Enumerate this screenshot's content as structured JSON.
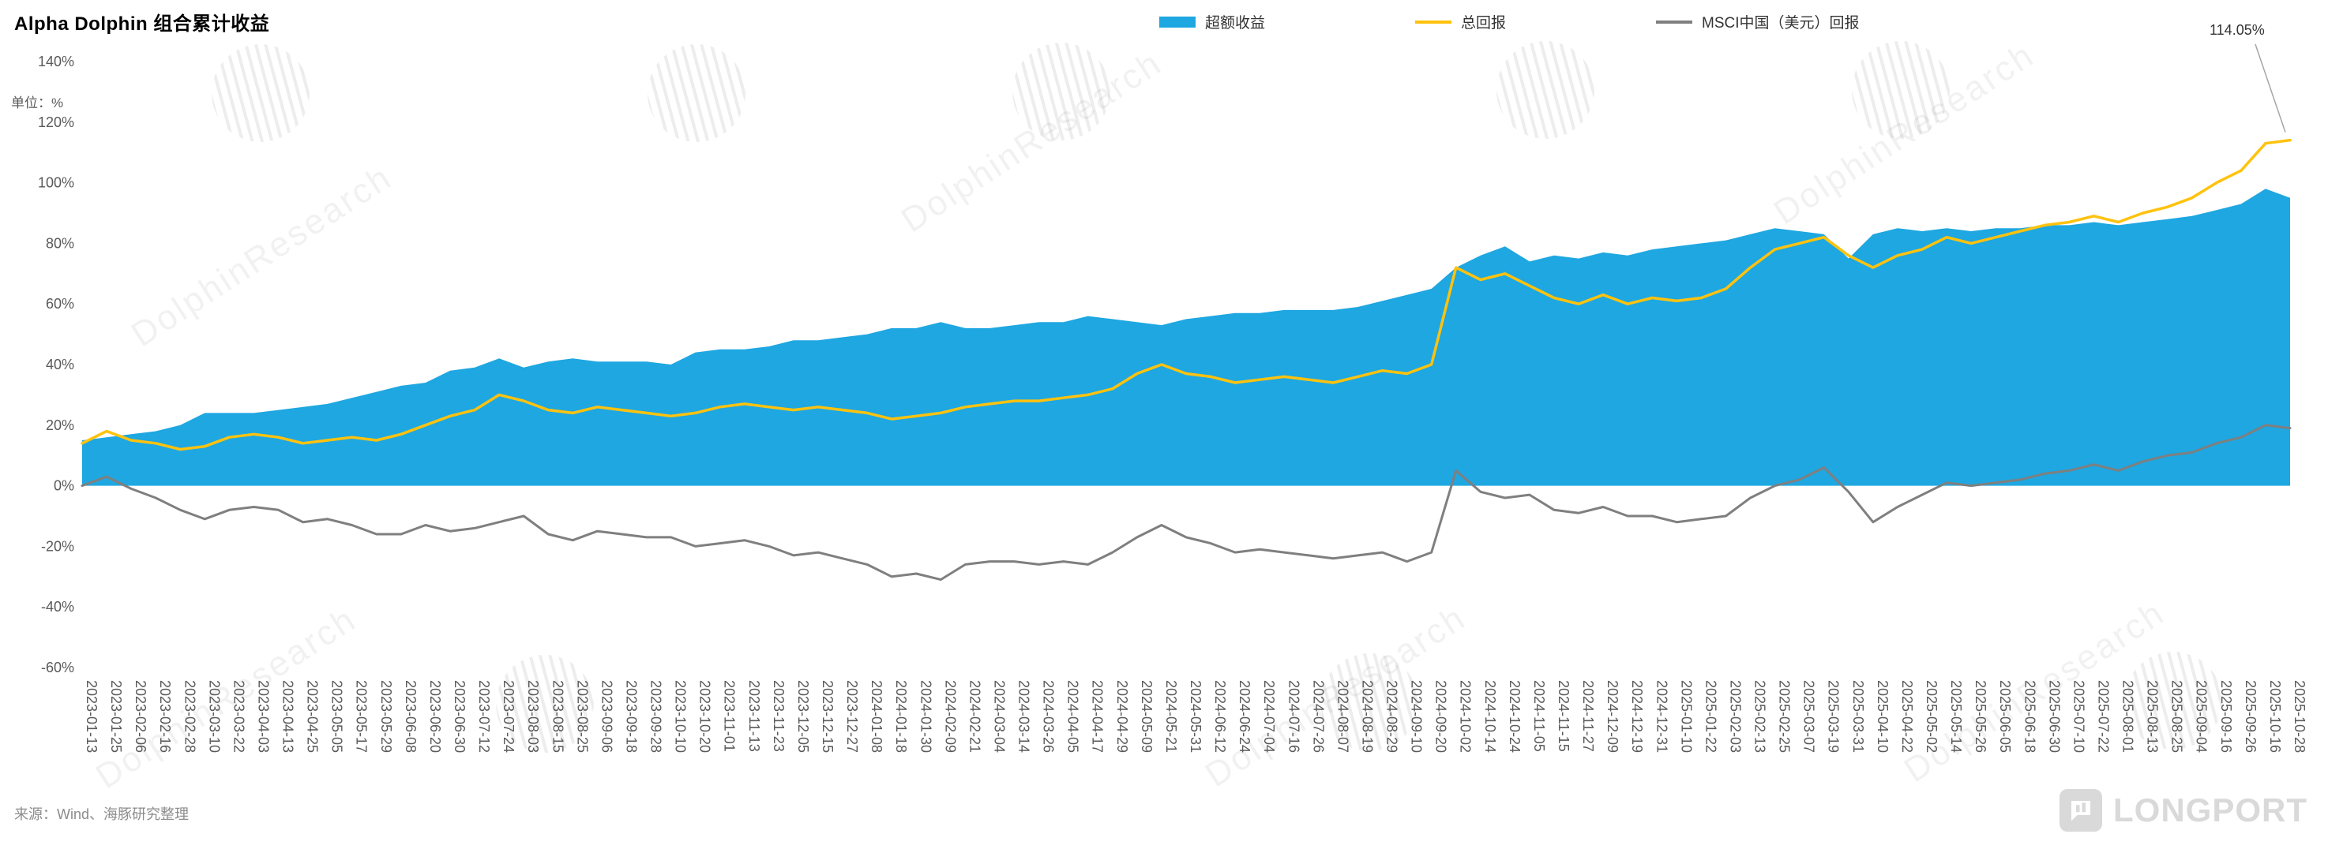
{
  "title": "Alpha Dolphin 组合累计收益",
  "unit_label": "单位：%",
  "legend": [
    {
      "label": "超额收益",
      "color": "#1EA7E1",
      "type": "area"
    },
    {
      "label": "总回报",
      "color": "#FFC20E",
      "type": "line"
    },
    {
      "label": "MSCI中国（美元）回报",
      "color": "#7F7F7F",
      "type": "line"
    }
  ],
  "annotation": {
    "text": "114.05%"
  },
  "source": "来源：Wind、海豚研究整理",
  "watermark": {
    "text": "DolphinResearch"
  },
  "logo": {
    "text": "LONGPORT"
  },
  "chart_data": {
    "type": "area",
    "title": "Alpha Dolphin 组合累计收益",
    "ylabel": "单位：%",
    "ylim": [
      -60,
      140
    ],
    "grid": false,
    "legend_position": "top",
    "x_tick_rotation": 90,
    "y_ticks": [
      {
        "value": 140,
        "label": "140%"
      },
      {
        "value": 120,
        "label": "120%"
      },
      {
        "value": 100,
        "label": "100%"
      },
      {
        "value": 80,
        "label": "80%"
      },
      {
        "value": 60,
        "label": "60%"
      },
      {
        "value": 40,
        "label": "40%"
      },
      {
        "value": 20,
        "label": "20%"
      },
      {
        "value": 0,
        "label": "0%"
      },
      {
        "value": -20,
        "label": "-20%"
      },
      {
        "value": -40,
        "label": "-40%"
      },
      {
        "value": -60,
        "label": "-60%"
      }
    ],
    "categories": [
      "2023-01-13",
      "2023-01-25",
      "2023-02-06",
      "2023-02-16",
      "2023-02-28",
      "2023-03-10",
      "2023-03-22",
      "2023-04-03",
      "2023-04-13",
      "2023-04-25",
      "2023-05-05",
      "2023-05-17",
      "2023-05-29",
      "2023-06-08",
      "2023-06-20",
      "2023-06-30",
      "2023-07-12",
      "2023-07-24",
      "2023-08-03",
      "2023-08-15",
      "2023-08-25",
      "2023-09-06",
      "2023-09-18",
      "2023-09-28",
      "2023-10-10",
      "2023-10-20",
      "2023-11-01",
      "2023-11-13",
      "2023-11-23",
      "2023-12-05",
      "2023-12-15",
      "2023-12-27",
      "2024-01-08",
      "2024-01-18",
      "2024-01-30",
      "2024-02-09",
      "2024-02-21",
      "2024-03-04",
      "2024-03-14",
      "2024-03-26",
      "2024-04-05",
      "2024-04-17",
      "2024-04-29",
      "2024-05-09",
      "2024-05-21",
      "2024-05-31",
      "2024-06-12",
      "2024-06-24",
      "2024-07-04",
      "2024-07-16",
      "2024-07-26",
      "2024-08-07",
      "2024-08-19",
      "2024-08-29",
      "2024-09-10",
      "2024-09-20",
      "2024-10-02",
      "2024-10-14",
      "2024-10-24",
      "2024-11-05",
      "2024-11-15",
      "2024-11-27",
      "2024-12-09",
      "2024-12-19",
      "2024-12-31",
      "2025-01-10",
      "2025-01-22",
      "2025-02-03",
      "2025-02-13",
      "2025-02-25",
      "2025-03-07",
      "2025-03-19",
      "2025-03-31",
      "2025-04-10",
      "2025-04-22",
      "2025-05-02",
      "2025-05-14",
      "2025-05-26",
      "2025-06-05",
      "2025-06-18",
      "2025-06-30",
      "2025-07-10",
      "2025-07-22",
      "2025-08-01",
      "2025-08-13",
      "2025-08-25",
      "2025-09-04",
      "2025-09-16",
      "2025-09-26",
      "2025-10-16",
      "2025-10-28"
    ],
    "series": [
      {
        "name": "超额收益",
        "type": "area",
        "color": "#1EA7E1",
        "values": [
          15,
          16,
          17,
          18,
          20,
          24,
          24,
          24,
          25,
          26,
          27,
          29,
          31,
          33,
          34,
          38,
          39,
          42,
          39,
          41,
          42,
          41,
          41,
          41,
          40,
          44,
          45,
          45,
          46,
          48,
          48,
          49,
          50,
          52,
          52,
          54,
          52,
          52,
          53,
          54,
          54,
          56,
          55,
          54,
          53,
          55,
          56,
          57,
          57,
          58,
          58,
          58,
          59,
          61,
          63,
          65,
          72,
          76,
          79,
          74,
          76,
          75,
          77,
          76,
          78,
          79,
          80,
          81,
          83,
          85,
          84,
          83,
          75,
          83,
          85,
          84,
          85,
          84,
          85,
          85,
          86,
          86,
          87,
          86,
          87,
          88,
          89,
          91,
          93,
          98,
          95
        ]
      },
      {
        "name": "总回报",
        "type": "line",
        "color": "#FFC20E",
        "values": [
          14,
          18,
          15,
          14,
          12,
          13,
          16,
          17,
          16,
          14,
          15,
          16,
          15,
          17,
          20,
          23,
          25,
          30,
          28,
          25,
          24,
          26,
          25,
          24,
          23,
          24,
          26,
          27,
          26,
          25,
          26,
          25,
          24,
          22,
          23,
          24,
          26,
          27,
          28,
          28,
          29,
          30,
          32,
          37,
          40,
          37,
          36,
          34,
          35,
          36,
          35,
          34,
          36,
          38,
          37,
          40,
          72,
          68,
          70,
          66,
          62,
          60,
          63,
          60,
          62,
          61,
          62,
          65,
          72,
          78,
          80,
          82,
          76,
          72,
          76,
          78,
          82,
          80,
          82,
          84,
          86,
          87,
          89,
          87,
          90,
          92,
          95,
          100,
          104,
          113,
          114.05
        ]
      },
      {
        "name": "MSCI中国（美元）回报",
        "type": "line",
        "color": "#7F7F7F",
        "values": [
          0,
          3,
          -1,
          -4,
          -8,
          -11,
          -8,
          -7,
          -8,
          -12,
          -11,
          -13,
          -16,
          -16,
          -13,
          -15,
          -14,
          -12,
          -10,
          -16,
          -18,
          -15,
          -16,
          -17,
          -17,
          -20,
          -19,
          -18,
          -20,
          -23,
          -22,
          -24,
          -26,
          -30,
          -29,
          -31,
          -26,
          -25,
          -25,
          -26,
          -25,
          -26,
          -22,
          -17,
          -13,
          -17,
          -19,
          -22,
          -21,
          -22,
          -23,
          -24,
          -23,
          -22,
          -25,
          -22,
          5,
          -2,
          -4,
          -3,
          -8,
          -9,
          -7,
          -10,
          -10,
          -12,
          -11,
          -10,
          -4,
          0,
          2,
          6,
          -2,
          -12,
          -7,
          -3,
          1,
          0,
          1,
          2,
          4,
          5,
          7,
          5,
          8,
          10,
          11,
          14,
          16,
          20,
          19
        ]
      }
    ],
    "end_label": {
      "series": "总回报",
      "value": 114.05,
      "text": "114.05%"
    }
  }
}
